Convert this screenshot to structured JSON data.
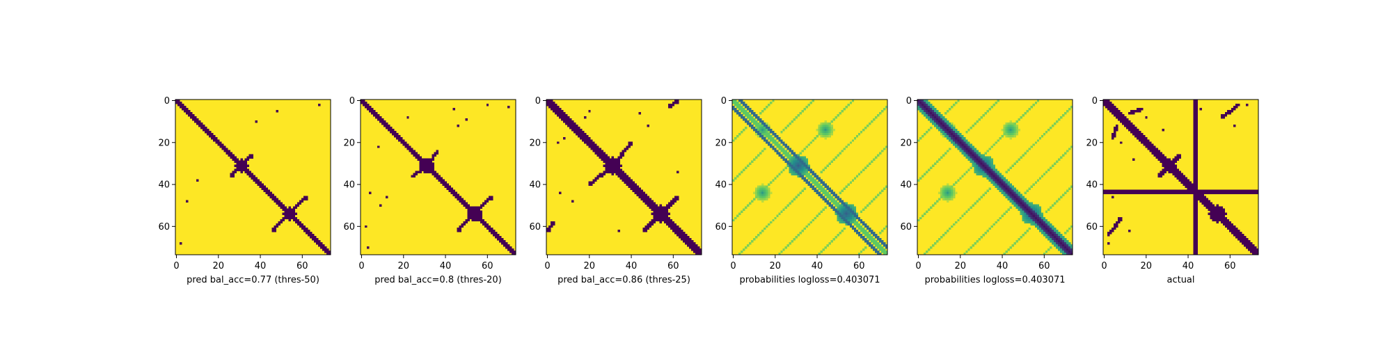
{
  "colors": {
    "dark": "#440154",
    "bright": "#fde725",
    "mid": "#21918c"
  },
  "chart_data": [
    {
      "type": "heatmap",
      "variant": "binary",
      "xlabel": "pred bal_acc=0.77 (thres-50)",
      "x_ticks": [
        0,
        20,
        40,
        60
      ],
      "y_ticks": [
        0,
        20,
        40,
        60
      ],
      "extent": [
        0,
        74
      ],
      "diagonal_halfwidth": 1.6,
      "blobs": [
        {
          "cx": 31,
          "cy": 31,
          "r": 3
        },
        {
          "cx": 54,
          "cy": 54,
          "r": 3
        }
      ],
      "streaks": [
        {
          "x0": 30,
          "y0": 31,
          "x1": 36,
          "y1": 26
        },
        {
          "x0": 31,
          "y0": 30,
          "x1": 26,
          "y1": 36
        },
        {
          "x0": 54,
          "y0": 53,
          "x1": 62,
          "y1": 46
        },
        {
          "x0": 53,
          "y0": 54,
          "x1": 46,
          "y1": 62
        }
      ],
      "points": [
        [
          48,
          5
        ],
        [
          5,
          48
        ],
        [
          68,
          2
        ],
        [
          2,
          68
        ],
        [
          38,
          10
        ],
        [
          10,
          38
        ]
      ]
    },
    {
      "type": "heatmap",
      "variant": "binary",
      "xlabel": "pred bal_acc=0.8 (thres-20)",
      "x_ticks": [
        0,
        20,
        40,
        60
      ],
      "y_ticks": [
        0,
        20,
        40,
        60
      ],
      "extent": [
        0,
        74
      ],
      "diagonal_halfwidth": 1.8,
      "blobs": [
        {
          "cx": 31,
          "cy": 31,
          "r": 3.5
        },
        {
          "cx": 54,
          "cy": 54,
          "r": 3.5
        }
      ],
      "streaks": [
        {
          "x0": 30,
          "y0": 32,
          "x1": 24,
          "y1": 36
        },
        {
          "x0": 32,
          "y0": 30,
          "x1": 36,
          "y1": 24
        },
        {
          "x0": 54,
          "y0": 53,
          "x1": 62,
          "y1": 46
        },
        {
          "x0": 53,
          "y0": 54,
          "x1": 46,
          "y1": 62
        }
      ],
      "points": [
        [
          44,
          4
        ],
        [
          4,
          44
        ],
        [
          60,
          2
        ],
        [
          2,
          60
        ],
        [
          50,
          9
        ],
        [
          9,
          50
        ],
        [
          22,
          8
        ],
        [
          8,
          22
        ],
        [
          70,
          3
        ],
        [
          3,
          70
        ],
        [
          12,
          46
        ],
        [
          46,
          12
        ]
      ]
    },
    {
      "type": "heatmap",
      "variant": "binary",
      "xlabel": "pred bal_acc=0.86 (thres-25)",
      "x_ticks": [
        0,
        20,
        40,
        60
      ],
      "y_ticks": [
        0,
        20,
        40,
        60
      ],
      "extent": [
        0,
        74
      ],
      "diagonal_halfwidth": 2.4,
      "blobs": [
        {
          "cx": 31,
          "cy": 31,
          "r": 4
        },
        {
          "cx": 54,
          "cy": 54,
          "r": 4
        }
      ],
      "streaks": [
        {
          "x0": 31,
          "y0": 31,
          "x1": 40,
          "y1": 20
        },
        {
          "x0": 31,
          "y0": 31,
          "x1": 20,
          "y1": 40
        },
        {
          "x0": 54,
          "y0": 54,
          "x1": 62,
          "y1": 46
        },
        {
          "x0": 54,
          "y0": 54,
          "x1": 46,
          "y1": 62
        },
        {
          "x0": 58,
          "y0": 3,
          "x1": 62,
          "y1": 0
        },
        {
          "x0": 3,
          "y0": 58,
          "x1": 0,
          "y1": 62
        }
      ],
      "points": [
        [
          20,
          5
        ],
        [
          5,
          20
        ],
        [
          44,
          6
        ],
        [
          6,
          44
        ],
        [
          60,
          2
        ],
        [
          2,
          60
        ],
        [
          8,
          18
        ],
        [
          18,
          8
        ],
        [
          34,
          62
        ],
        [
          62,
          34
        ],
        [
          12,
          48
        ],
        [
          48,
          12
        ]
      ]
    },
    {
      "type": "heatmap",
      "variant": "continuous",
      "xlabel": "probabilities logloss=0.403071",
      "x_ticks": [
        0,
        20,
        40,
        60
      ],
      "y_ticks": [
        0,
        20,
        40,
        60
      ],
      "extent": [
        0,
        74
      ],
      "diagonal_mode": "offset",
      "bands": [
        {
          "a": 1,
          "b": 1,
          "d": 0,
          "w": 2.8,
          "v": 0.2
        },
        {
          "a": 1,
          "b": 1,
          "d": 0,
          "w": 5.0,
          "v": 0.5
        }
      ],
      "blobs": [
        {
          "cx": 31,
          "cy": 31,
          "r": 5,
          "v": 0.3
        },
        {
          "cx": 54,
          "cy": 54,
          "r": 5,
          "v": 0.3
        },
        {
          "cx": 14,
          "cy": 14,
          "r": 4,
          "v": 0.55
        },
        {
          "cx": 44,
          "cy": 14,
          "r": 4,
          "v": 0.55
        },
        {
          "cx": 14,
          "cy": 44,
          "r": 4,
          "v": 0.55
        }
      ]
    },
    {
      "type": "heatmap",
      "variant": "continuous",
      "xlabel": "probabilities logloss=0.403071",
      "x_ticks": [
        0,
        20,
        40,
        60
      ],
      "y_ticks": [
        0,
        20,
        40,
        60
      ],
      "extent": [
        0,
        74
      ],
      "diagonal_mode": "solid",
      "bands": [
        {
          "a": 1,
          "b": 1,
          "d": 0,
          "w": 2.6,
          "v": 0.05
        },
        {
          "a": 1,
          "b": 1,
          "d": 0,
          "w": 4.2,
          "v": 0.45
        }
      ],
      "blobs": [
        {
          "cx": 31,
          "cy": 31,
          "r": 5,
          "v": 0.3
        },
        {
          "cx": 54,
          "cy": 54,
          "r": 5,
          "v": 0.3
        },
        {
          "cx": 14,
          "cy": 14,
          "r": 4,
          "v": 0.55
        },
        {
          "cx": 44,
          "cy": 14,
          "r": 4,
          "v": 0.55
        },
        {
          "cx": 14,
          "cy": 44,
          "r": 4,
          "v": 0.55
        }
      ]
    },
    {
      "type": "heatmap",
      "variant": "binary",
      "xlabel": "actual",
      "x_ticks": [
        0,
        20,
        40,
        60
      ],
      "y_ticks": [
        0,
        20,
        40,
        60
      ],
      "extent": [
        0,
        74
      ],
      "diagonal_halfwidth": 2.2,
      "cross_index": 43,
      "blobs": [
        {
          "cx": 54,
          "cy": 54,
          "r": 4
        },
        {
          "cx": 31,
          "cy": 31,
          "r": 3
        }
      ],
      "streaks": [
        {
          "x0": 12,
          "y0": 6,
          "x1": 18,
          "y1": 4
        },
        {
          "x0": 6,
          "y0": 12,
          "x1": 4,
          "y1": 18
        },
        {
          "x0": 26,
          "y0": 36,
          "x1": 34,
          "y1": 28
        },
        {
          "x0": 36,
          "y0": 26,
          "x1": 28,
          "y1": 34
        },
        {
          "x0": 56,
          "y0": 8,
          "x1": 64,
          "y1": 2
        },
        {
          "x0": 8,
          "y0": 56,
          "x1": 2,
          "y1": 64
        }
      ],
      "points": [
        [
          20,
          8
        ],
        [
          8,
          20
        ],
        [
          46,
          4
        ],
        [
          4,
          46
        ],
        [
          28,
          14
        ],
        [
          14,
          28
        ],
        [
          62,
          12
        ],
        [
          12,
          62
        ],
        [
          68,
          2
        ],
        [
          2,
          68
        ]
      ]
    }
  ]
}
